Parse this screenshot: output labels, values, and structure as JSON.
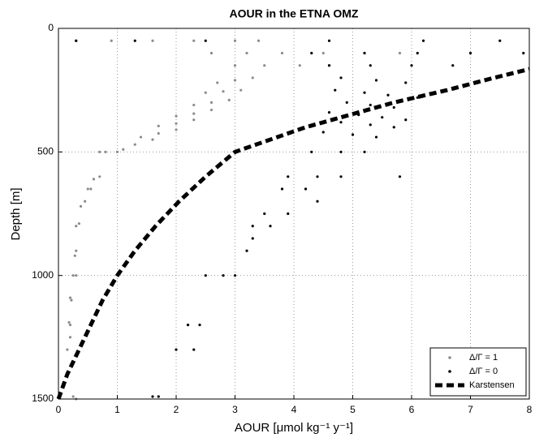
{
  "chart_data": {
    "type": "scatter",
    "title": "AOUR in the ETNA OMZ",
    "xlabel": "AOUR  [μmol kg⁻¹ y⁻¹]",
    "ylabel": "Depth  [m]",
    "xlim": [
      0,
      8
    ],
    "xticks": [
      0,
      1,
      2,
      3,
      4,
      5,
      6,
      7,
      8
    ],
    "ylim": [
      1500,
      0
    ],
    "yticks": [
      0,
      500,
      1000,
      1500
    ],
    "grid": true,
    "legend": "lower right",
    "series": [
      {
        "name": "Δ/Γ = 1",
        "color": "#8c8c8c",
        "x": [
          0.3,
          0.9,
          1.6,
          2.3,
          3.0,
          3.4,
          2.6,
          3.2,
          3.8,
          4.5,
          5.2,
          5.8,
          3.0,
          3.5,
          4.1,
          4.6,
          3.3,
          3.0,
          2.7,
          3.1,
          2.8,
          2.5,
          2.9,
          2.6,
          2.3,
          2.6,
          2.3,
          2.0,
          2.3,
          2.0,
          1.7,
          2.0,
          1.7,
          1.4,
          1.6,
          1.3,
          1.1,
          1.0,
          0.8,
          0.7,
          0.7,
          0.6,
          0.55,
          0.5,
          0.45,
          0.38,
          0.35,
          0.3,
          0.3,
          0.28,
          0.25,
          0.3,
          0.22,
          0.2,
          0.2,
          0.18,
          0.2,
          0.15,
          0.25,
          0.3
        ],
        "values": [
          50,
          50,
          50,
          50,
          50,
          50,
          100,
          100,
          100,
          100,
          100,
          100,
          150,
          150,
          150,
          150,
          200,
          210,
          220,
          250,
          255,
          260,
          290,
          300,
          310,
          330,
          345,
          355,
          370,
          385,
          395,
          410,
          425,
          440,
          450,
          470,
          490,
          500,
          500,
          500,
          600,
          610,
          650,
          650,
          700,
          720,
          790,
          800,
          900,
          920,
          1000,
          1000,
          1100,
          1090,
          1200,
          1190,
          1250,
          1300,
          1490,
          1500
        ]
      },
      {
        "name": "Δ/Γ = 0",
        "color": "#000000",
        "x": [
          0.3,
          1.3,
          2.5,
          4.6,
          6.2,
          7.5,
          4.3,
          5.2,
          6.1,
          7.0,
          7.9,
          4.6,
          5.3,
          6.0,
          6.7,
          4.8,
          5.4,
          5.9,
          4.7,
          5.2,
          5.6,
          6.1,
          4.9,
          5.3,
          5.7,
          4.6,
          5.1,
          5.5,
          5.9,
          4.8,
          5.3,
          5.7,
          4.5,
          5.0,
          5.4,
          4.3,
          4.8,
          5.2,
          3.9,
          4.4,
          4.8,
          3.8,
          4.2,
          4.4,
          3.5,
          3.9,
          3.3,
          3.6,
          3.3,
          3.2,
          2.5,
          2.8,
          3.0,
          2.2,
          2.4,
          2.0,
          2.3,
          1.6,
          1.7,
          5.8
        ],
        "values": [
          50,
          50,
          50,
          50,
          50,
          50,
          100,
          100,
          100,
          100,
          100,
          150,
          150,
          150,
          150,
          200,
          210,
          220,
          250,
          260,
          270,
          280,
          300,
          310,
          320,
          340,
          350,
          360,
          370,
          380,
          390,
          400,
          420,
          430,
          440,
          500,
          500,
          500,
          600,
          600,
          600,
          650,
          650,
          700,
          750,
          750,
          800,
          800,
          850,
          900,
          1000,
          1000,
          1000,
          1200,
          1200,
          1300,
          1300,
          1490,
          1490,
          600
        ]
      },
      {
        "name": "Karstensen",
        "color": "#000000",
        "line": "dashed",
        "x": [
          0,
          0.15,
          0.35,
          0.55,
          0.75,
          1.0,
          1.3,
          1.65,
          2.05,
          2.5,
          3.0,
          4.2,
          5.7,
          6.6,
          7.4,
          8.0
        ],
        "values": [
          1500,
          1400,
          1300,
          1200,
          1100,
          1000,
          900,
          800,
          700,
          600,
          500,
          400,
          300,
          250,
          200,
          165
        ]
      }
    ]
  }
}
